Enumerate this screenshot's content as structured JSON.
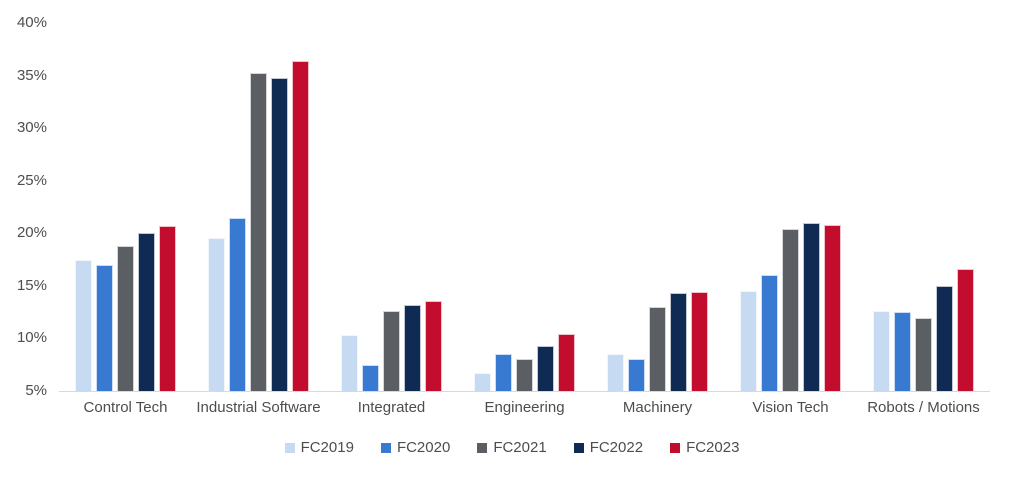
{
  "chart_data": {
    "type": "bar",
    "title": "",
    "xlabel": "",
    "ylabel": "",
    "categories": [
      "Control Tech",
      "Industrial Software",
      "Integrated",
      "Engineering",
      "Machinery",
      "Vision Tech",
      "Robots / Motions"
    ],
    "series": [
      {
        "name": "FC2019",
        "color": "#c6daf1",
        "values": [
          17.5,
          19.6,
          10.3,
          6.7,
          8.5,
          14.5,
          12.6
        ]
      },
      {
        "name": "FC2020",
        "color": "#3879d2",
        "values": [
          17.0,
          21.5,
          7.5,
          8.5,
          8.0,
          16.0,
          12.5
        ]
      },
      {
        "name": "FC2021",
        "color": "#5b5e63",
        "values": [
          18.8,
          35.2,
          12.6,
          8.0,
          13.0,
          20.4,
          11.9
        ]
      },
      {
        "name": "FC2022",
        "color": "#0f2b54",
        "values": [
          20.0,
          34.8,
          13.2,
          9.3,
          14.3,
          21.0,
          15.0
        ]
      },
      {
        "name": "FC2023",
        "color": "#c30d2e",
        "values": [
          20.7,
          36.4,
          13.6,
          10.4,
          14.4,
          20.8,
          16.6
        ]
      }
    ],
    "axis": {
      "ymin": 5,
      "ymax": 40,
      "ystep": 5,
      "tick_labels": [
        "5%",
        "10%",
        "15%",
        "20%",
        "25%",
        "30%",
        "35%",
        "40%"
      ],
      "bar_baseline": 5,
      "grid": "off",
      "baseline_color": "#d9d9d9",
      "text_color": "#4d4d4d"
    },
    "legend": {
      "position": "bottom",
      "entries": [
        "FC2019",
        "FC2020",
        "FC2021",
        "FC2022",
        "FC2023"
      ]
    }
  }
}
